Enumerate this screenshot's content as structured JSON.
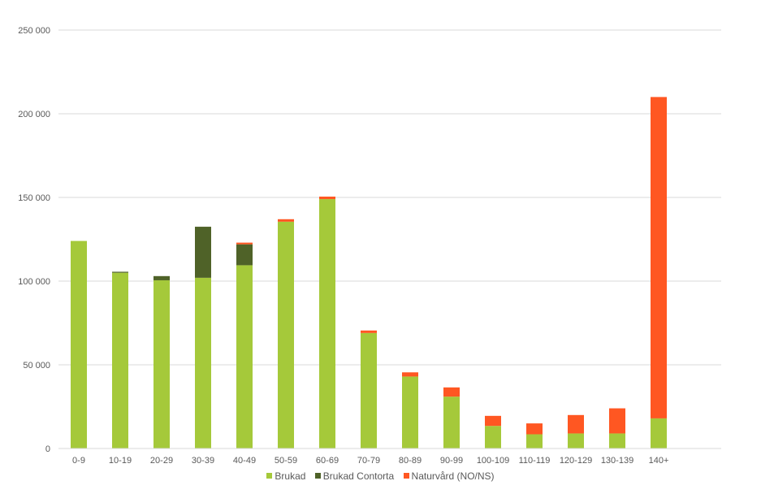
{
  "chart_data": {
    "type": "bar",
    "stacked": true,
    "categories": [
      "0-9",
      "10-19",
      "20-29",
      "30-39",
      "40-49",
      "50-59",
      "60-69",
      "70-79",
      "80-89",
      "90-99",
      "100-109",
      "110-119",
      "120-129",
      "130-139",
      "140+"
    ],
    "series": [
      {
        "name": "Brukad",
        "color": "#a5c93a",
        "values": [
          124000,
          105000,
          100500,
          102000,
          109500,
          135500,
          149000,
          69000,
          43000,
          31000,
          13500,
          8500,
          9000,
          9000,
          18000
        ]
      },
      {
        "name": "Brukad Contorta",
        "color": "#4f6228",
        "values": [
          0,
          600,
          2500,
          30500,
          12500,
          0,
          0,
          0,
          0,
          0,
          0,
          0,
          0,
          0,
          0
        ]
      },
      {
        "name": "Naturvård (NO/NS)",
        "color": "#ff5722",
        "values": [
          0,
          0,
          0,
          0,
          1000,
          1500,
          1500,
          1500,
          2500,
          5500,
          6000,
          6500,
          11000,
          15000,
          192000
        ]
      }
    ],
    "y_ticks": [
      "0",
      "50 000",
      "100 000",
      "150 000",
      "200 000",
      "250 000"
    ],
    "ylim": [
      0,
      250000
    ],
    "grid": true,
    "legend_position": "bottom",
    "title": "",
    "xlabel": "",
    "ylabel": ""
  }
}
